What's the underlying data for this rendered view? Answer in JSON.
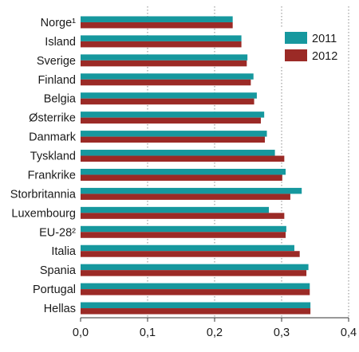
{
  "chart_data": {
    "type": "bar",
    "orientation": "horizontal",
    "categories": [
      "Norge¹",
      "Island",
      "Sverige",
      "Finland",
      "Belgia",
      "Østerrike",
      "Danmark",
      "Tyskland",
      "Frankrike",
      "Storbritannia",
      "Luxembourg",
      "EU-28²",
      "Italia",
      "Spania",
      "Portugal",
      "Hellas"
    ],
    "series": [
      {
        "name": "2011",
        "color": "#16989e",
        "values": [
          0.227,
          0.24,
          0.249,
          0.258,
          0.263,
          0.274,
          0.278,
          0.29,
          0.306,
          0.33,
          0.281,
          0.307,
          0.319,
          0.34,
          0.342,
          0.343
        ]
      },
      {
        "name": "2012",
        "color": "#9b2a26",
        "values": [
          0.227,
          0.24,
          0.248,
          0.254,
          0.259,
          0.269,
          0.275,
          0.304,
          0.301,
          0.313,
          0.304,
          0.306,
          0.327,
          0.337,
          0.342,
          0.343
        ]
      }
    ],
    "xlim": [
      0,
      0.4
    ],
    "xticks": [
      "0,0",
      "0,1",
      "0,2",
      "0,3",
      "0,4"
    ],
    "grid": "vertical dotted at 0,1 0,2 0,3 0,4",
    "legend": "top-right",
    "title": "",
    "xlabel": "",
    "ylabel": ""
  }
}
